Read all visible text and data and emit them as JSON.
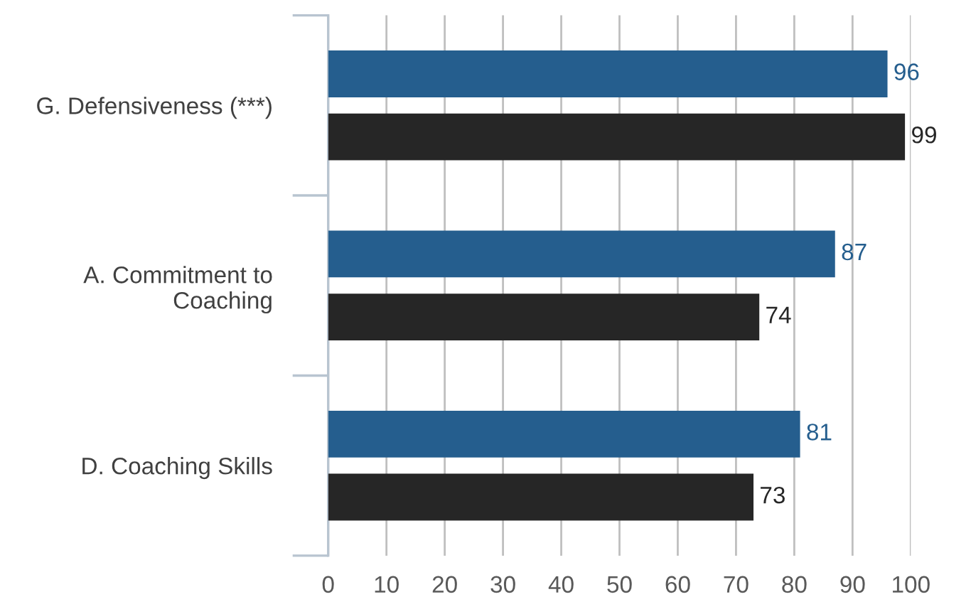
{
  "chart_data": {
    "type": "bar",
    "orientation": "horizontal",
    "categories": [
      "G. Defensiveness (***)",
      "A. Commitment to\nCoaching",
      "D. Coaching Skills"
    ],
    "series": [
      {
        "color": "#255e8e",
        "values": [
          96,
          87,
          81
        ]
      },
      {
        "color": "#262626",
        "values": [
          99,
          74,
          73
        ]
      }
    ],
    "xlim": [
      0,
      100
    ],
    "xticks": [
      0,
      10,
      20,
      30,
      40,
      50,
      60,
      70,
      80,
      90,
      100
    ],
    "grid": "x",
    "data_labels": true
  }
}
